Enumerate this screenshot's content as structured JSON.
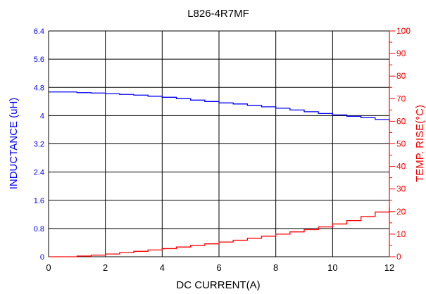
{
  "chart_data": {
    "type": "line",
    "title": "L826-4R7MF",
    "xlabel": "DC CURRENT(A)",
    "ylabel_left": "INDUCTANCE (uH)",
    "ylabel_right": "TEMP. RISE(°C)",
    "xlim": [
      0,
      12
    ],
    "ylim_left": [
      0,
      6.4
    ],
    "ylim_right": [
      0,
      100
    ],
    "x_ticks": [
      "0",
      "2",
      "4",
      "6",
      "8",
      "10",
      "12"
    ],
    "y_left_ticks": [
      "0",
      "0.8",
      "1.6",
      "2.4",
      "3.2",
      "4",
      "4.8",
      "5.6",
      "6.4"
    ],
    "y_right_ticks": [
      "0",
      "10",
      "20",
      "30",
      "40",
      "50",
      "60",
      "70",
      "80",
      "90",
      "100"
    ],
    "grid": true,
    "colors": {
      "left_axis": "#0000ff",
      "right_axis": "#ff0000",
      "grid": "#000000"
    },
    "series": [
      {
        "axis": "left",
        "color": "#0000ff",
        "x": [
          0,
          0.5,
          1,
          1.5,
          2,
          2.5,
          3,
          3.5,
          4,
          4.5,
          5,
          5.5,
          6,
          6.5,
          7,
          7.5,
          8,
          8.5,
          9,
          9.5,
          10,
          10.5,
          11,
          11.5,
          12
        ],
        "values": [
          4.67,
          4.67,
          4.65,
          4.64,
          4.62,
          4.6,
          4.58,
          4.55,
          4.52,
          4.48,
          4.44,
          4.4,
          4.36,
          4.33,
          4.29,
          4.25,
          4.21,
          4.16,
          4.11,
          4.06,
          4.02,
          3.98,
          3.94,
          3.89,
          3.84
        ]
      },
      {
        "axis": "right",
        "color": "#ff0000",
        "x": [
          0,
          0.5,
          1,
          1.5,
          2,
          2.5,
          3,
          3.5,
          4,
          4.5,
          5,
          5.5,
          6,
          6.5,
          7,
          7.5,
          8,
          8.5,
          9,
          9.5,
          10,
          10.5,
          11,
          11.5,
          12
        ],
        "values": [
          0,
          0,
          0.3,
          0.7,
          1.2,
          1.8,
          2.4,
          3.0,
          3.6,
          4.3,
          5.0,
          5.7,
          6.5,
          7.3,
          8.2,
          9.1,
          10.0,
          11.0,
          12.0,
          13.2,
          14.5,
          16.0,
          17.8,
          19.8,
          21.8
        ]
      }
    ]
  }
}
